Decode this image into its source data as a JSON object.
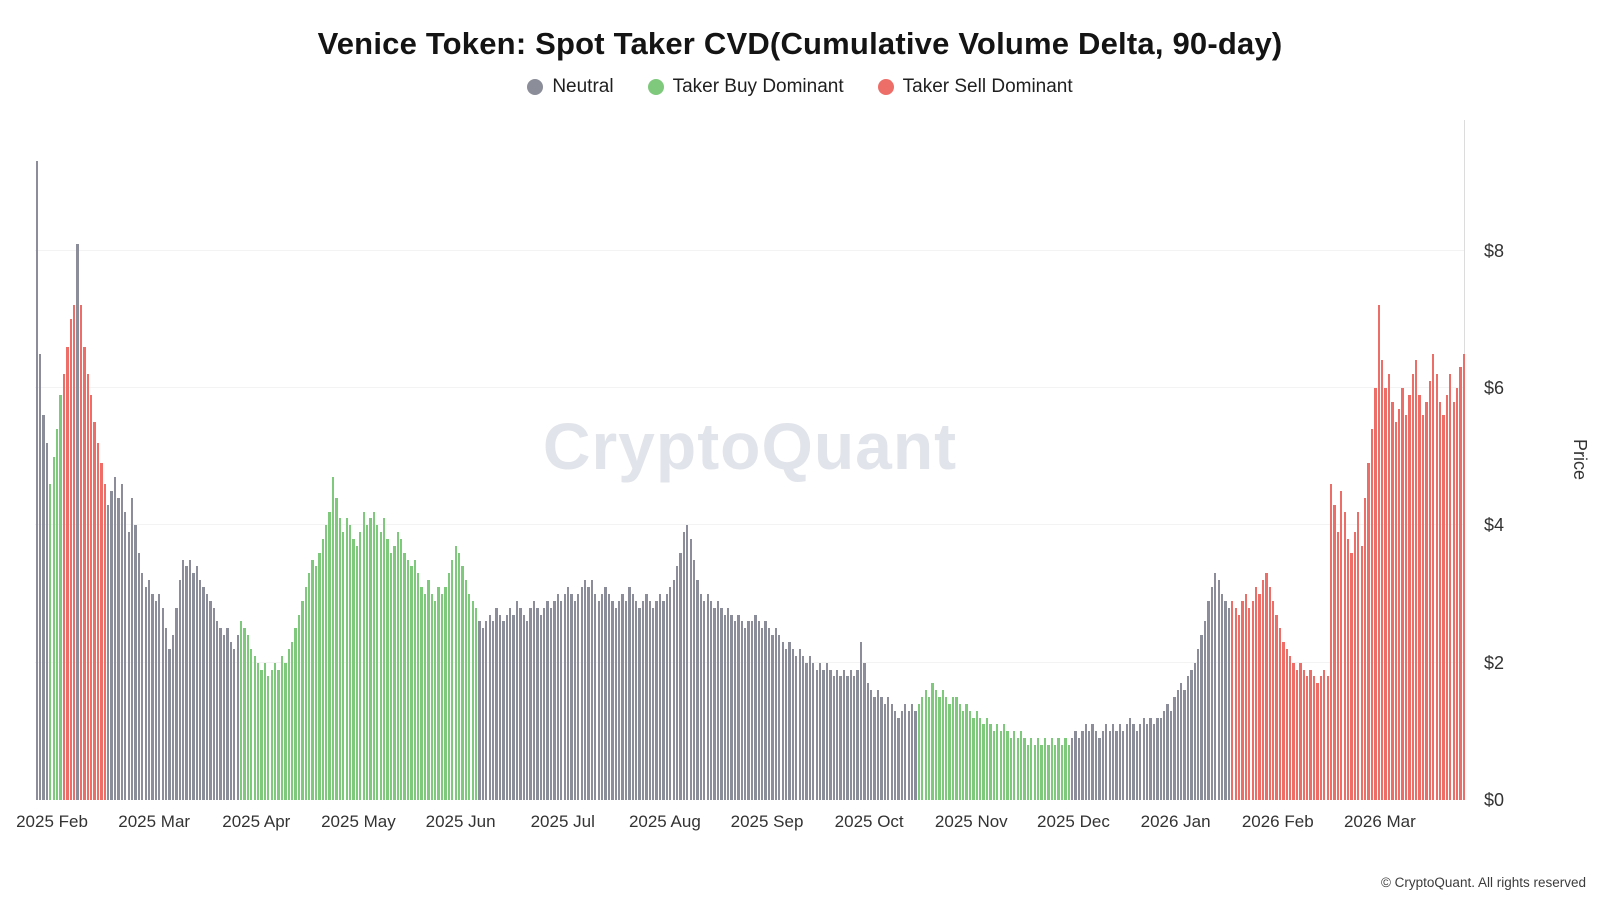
{
  "header": {
    "title": "Venice Token: Spot Taker CVD(Cumulative Volume Delta, 90-day)",
    "legend": [
      {
        "label": "Neutral",
        "color": "#8b8d98"
      },
      {
        "label": "Taker Buy Dominant",
        "color": "#7fc97d"
      },
      {
        "label": "Taker Sell Dominant",
        "color": "#ed6d68"
      }
    ]
  },
  "chart_data": {
    "type": "bar",
    "title": "Venice Token: Spot Taker CVD(Cumulative Volume Delta, 90-day)",
    "xlabel": "",
    "ylabel": "Price",
    "ylim": [
      0,
      9.9
    ],
    "grid": true,
    "legend_position": "top",
    "watermark": "CryptoQuant",
    "colors": {
      "n": "#8b8d98",
      "b": "#7fc97d",
      "s": "#ed6d68"
    },
    "dominance_codes": {
      "n": "Neutral",
      "b": "Taker Buy Dominant",
      "s": "Taker Sell Dominant"
    },
    "bar_format": [
      "price_usd",
      "dominance"
    ],
    "bars_per_x_tick": 30,
    "y_ticks": [
      {
        "label": "$0",
        "value": 0
      },
      {
        "label": "$2",
        "value": 2
      },
      {
        "label": "$4",
        "value": 4
      },
      {
        "label": "$6",
        "value": 6
      },
      {
        "label": "$8",
        "value": 8
      }
    ],
    "x_ticks": [
      "2025 Feb",
      "2025 Mar",
      "2025 Apr",
      "2025 May",
      "2025 Jun",
      "2025 Jul",
      "2025 Aug",
      "2025 Sep",
      "2025 Oct",
      "2025 Nov",
      "2025 Dec",
      "2026 Jan",
      "2026 Feb",
      "2026 Mar"
    ],
    "bars": [
      [
        9.3,
        "n"
      ],
      [
        6.5,
        "n"
      ],
      [
        5.6,
        "n"
      ],
      [
        5.2,
        "n"
      ],
      [
        4.6,
        "b"
      ],
      [
        5.0,
        "b"
      ],
      [
        5.4,
        "b"
      ],
      [
        5.9,
        "b"
      ],
      [
        6.2,
        "s"
      ],
      [
        6.6,
        "s"
      ],
      [
        7.0,
        "s"
      ],
      [
        7.2,
        "s"
      ],
      [
        8.1,
        "n"
      ],
      [
        7.2,
        "s"
      ],
      [
        6.6,
        "s"
      ],
      [
        6.2,
        "s"
      ],
      [
        5.9,
        "s"
      ],
      [
        5.5,
        "s"
      ],
      [
        5.2,
        "s"
      ],
      [
        4.9,
        "s"
      ],
      [
        4.6,
        "s"
      ],
      [
        4.3,
        "n"
      ],
      [
        4.5,
        "n"
      ],
      [
        4.7,
        "n"
      ],
      [
        4.4,
        "n"
      ],
      [
        4.6,
        "n"
      ],
      [
        4.2,
        "n"
      ],
      [
        3.9,
        "n"
      ],
      [
        4.4,
        "n"
      ],
      [
        4.0,
        "n"
      ],
      [
        3.6,
        "n"
      ],
      [
        3.3,
        "n"
      ],
      [
        3.1,
        "n"
      ],
      [
        3.2,
        "n"
      ],
      [
        3.0,
        "n"
      ],
      [
        2.9,
        "n"
      ],
      [
        3.0,
        "n"
      ],
      [
        2.8,
        "n"
      ],
      [
        2.5,
        "n"
      ],
      [
        2.2,
        "n"
      ],
      [
        2.4,
        "n"
      ],
      [
        2.8,
        "n"
      ],
      [
        3.2,
        "n"
      ],
      [
        3.5,
        "n"
      ],
      [
        3.4,
        "n"
      ],
      [
        3.5,
        "n"
      ],
      [
        3.3,
        "n"
      ],
      [
        3.4,
        "n"
      ],
      [
        3.2,
        "n"
      ],
      [
        3.1,
        "n"
      ],
      [
        3.0,
        "n"
      ],
      [
        2.9,
        "n"
      ],
      [
        2.8,
        "n"
      ],
      [
        2.6,
        "n"
      ],
      [
        2.5,
        "n"
      ],
      [
        2.4,
        "n"
      ],
      [
        2.5,
        "n"
      ],
      [
        2.3,
        "n"
      ],
      [
        2.2,
        "n"
      ],
      [
        2.4,
        "n"
      ],
      [
        2.6,
        "b"
      ],
      [
        2.5,
        "b"
      ],
      [
        2.4,
        "b"
      ],
      [
        2.2,
        "b"
      ],
      [
        2.1,
        "b"
      ],
      [
        2.0,
        "b"
      ],
      [
        1.9,
        "b"
      ],
      [
        2.0,
        "b"
      ],
      [
        1.8,
        "b"
      ],
      [
        1.9,
        "b"
      ],
      [
        2.0,
        "b"
      ],
      [
        1.9,
        "b"
      ],
      [
        2.1,
        "b"
      ],
      [
        2.0,
        "b"
      ],
      [
        2.2,
        "b"
      ],
      [
        2.3,
        "b"
      ],
      [
        2.5,
        "b"
      ],
      [
        2.7,
        "b"
      ],
      [
        2.9,
        "b"
      ],
      [
        3.1,
        "b"
      ],
      [
        3.3,
        "b"
      ],
      [
        3.5,
        "b"
      ],
      [
        3.4,
        "b"
      ],
      [
        3.6,
        "b"
      ],
      [
        3.8,
        "b"
      ],
      [
        4.0,
        "b"
      ],
      [
        4.2,
        "b"
      ],
      [
        4.7,
        "b"
      ],
      [
        4.4,
        "b"
      ],
      [
        4.1,
        "b"
      ],
      [
        3.9,
        "b"
      ],
      [
        4.1,
        "b"
      ],
      [
        4.0,
        "b"
      ],
      [
        3.8,
        "b"
      ],
      [
        3.7,
        "b"
      ],
      [
        3.9,
        "b"
      ],
      [
        4.2,
        "b"
      ],
      [
        4.0,
        "b"
      ],
      [
        4.1,
        "b"
      ],
      [
        4.2,
        "b"
      ],
      [
        4.0,
        "b"
      ],
      [
        3.9,
        "b"
      ],
      [
        4.1,
        "b"
      ],
      [
        3.8,
        "b"
      ],
      [
        3.6,
        "b"
      ],
      [
        3.7,
        "b"
      ],
      [
        3.9,
        "b"
      ],
      [
        3.8,
        "b"
      ],
      [
        3.6,
        "b"
      ],
      [
        3.5,
        "b"
      ],
      [
        3.4,
        "b"
      ],
      [
        3.5,
        "b"
      ],
      [
        3.3,
        "b"
      ],
      [
        3.1,
        "b"
      ],
      [
        3.0,
        "b"
      ],
      [
        3.2,
        "b"
      ],
      [
        3.0,
        "b"
      ],
      [
        2.9,
        "b"
      ],
      [
        3.1,
        "b"
      ],
      [
        3.0,
        "b"
      ],
      [
        3.1,
        "b"
      ],
      [
        3.3,
        "b"
      ],
      [
        3.5,
        "b"
      ],
      [
        3.7,
        "b"
      ],
      [
        3.6,
        "b"
      ],
      [
        3.4,
        "b"
      ],
      [
        3.2,
        "b"
      ],
      [
        3.0,
        "b"
      ],
      [
        2.9,
        "b"
      ],
      [
        2.8,
        "b"
      ],
      [
        2.6,
        "n"
      ],
      [
        2.5,
        "n"
      ],
      [
        2.6,
        "n"
      ],
      [
        2.7,
        "n"
      ],
      [
        2.6,
        "n"
      ],
      [
        2.8,
        "n"
      ],
      [
        2.7,
        "n"
      ],
      [
        2.6,
        "n"
      ],
      [
        2.7,
        "n"
      ],
      [
        2.8,
        "n"
      ],
      [
        2.7,
        "n"
      ],
      [
        2.9,
        "n"
      ],
      [
        2.8,
        "n"
      ],
      [
        2.7,
        "n"
      ],
      [
        2.6,
        "n"
      ],
      [
        2.8,
        "n"
      ],
      [
        2.9,
        "n"
      ],
      [
        2.8,
        "n"
      ],
      [
        2.7,
        "n"
      ],
      [
        2.8,
        "n"
      ],
      [
        2.9,
        "n"
      ],
      [
        2.8,
        "n"
      ],
      [
        2.9,
        "n"
      ],
      [
        3.0,
        "n"
      ],
      [
        2.9,
        "n"
      ],
      [
        3.0,
        "n"
      ],
      [
        3.1,
        "n"
      ],
      [
        3.0,
        "n"
      ],
      [
        2.9,
        "n"
      ],
      [
        3.0,
        "n"
      ],
      [
        3.1,
        "n"
      ],
      [
        3.2,
        "n"
      ],
      [
        3.1,
        "n"
      ],
      [
        3.2,
        "n"
      ],
      [
        3.0,
        "n"
      ],
      [
        2.9,
        "n"
      ],
      [
        3.0,
        "n"
      ],
      [
        3.1,
        "n"
      ],
      [
        3.0,
        "n"
      ],
      [
        2.9,
        "n"
      ],
      [
        2.8,
        "n"
      ],
      [
        2.9,
        "n"
      ],
      [
        3.0,
        "n"
      ],
      [
        2.9,
        "n"
      ],
      [
        3.1,
        "n"
      ],
      [
        3.0,
        "n"
      ],
      [
        2.9,
        "n"
      ],
      [
        2.8,
        "n"
      ],
      [
        2.9,
        "n"
      ],
      [
        3.0,
        "n"
      ],
      [
        2.9,
        "n"
      ],
      [
        2.8,
        "n"
      ],
      [
        2.9,
        "n"
      ],
      [
        3.0,
        "n"
      ],
      [
        2.9,
        "n"
      ],
      [
        3.0,
        "n"
      ],
      [
        3.1,
        "n"
      ],
      [
        3.2,
        "n"
      ],
      [
        3.4,
        "n"
      ],
      [
        3.6,
        "n"
      ],
      [
        3.9,
        "n"
      ],
      [
        4.0,
        "n"
      ],
      [
        3.8,
        "n"
      ],
      [
        3.5,
        "n"
      ],
      [
        3.2,
        "n"
      ],
      [
        3.0,
        "n"
      ],
      [
        2.9,
        "n"
      ],
      [
        3.0,
        "n"
      ],
      [
        2.9,
        "n"
      ],
      [
        2.8,
        "n"
      ],
      [
        2.9,
        "n"
      ],
      [
        2.8,
        "n"
      ],
      [
        2.7,
        "n"
      ],
      [
        2.8,
        "n"
      ],
      [
        2.7,
        "n"
      ],
      [
        2.6,
        "n"
      ],
      [
        2.7,
        "n"
      ],
      [
        2.6,
        "n"
      ],
      [
        2.5,
        "n"
      ],
      [
        2.6,
        "n"
      ],
      [
        2.6,
        "n"
      ],
      [
        2.7,
        "n"
      ],
      [
        2.6,
        "n"
      ],
      [
        2.5,
        "n"
      ],
      [
        2.6,
        "n"
      ],
      [
        2.5,
        "n"
      ],
      [
        2.4,
        "n"
      ],
      [
        2.5,
        "n"
      ],
      [
        2.4,
        "n"
      ],
      [
        2.3,
        "n"
      ],
      [
        2.2,
        "n"
      ],
      [
        2.3,
        "n"
      ],
      [
        2.2,
        "n"
      ],
      [
        2.1,
        "n"
      ],
      [
        2.2,
        "n"
      ],
      [
        2.1,
        "n"
      ],
      [
        2.0,
        "n"
      ],
      [
        2.1,
        "n"
      ],
      [
        2.0,
        "n"
      ],
      [
        1.9,
        "n"
      ],
      [
        2.0,
        "n"
      ],
      [
        1.9,
        "n"
      ],
      [
        2.0,
        "n"
      ],
      [
        1.9,
        "n"
      ],
      [
        1.8,
        "n"
      ],
      [
        1.9,
        "n"
      ],
      [
        1.8,
        "n"
      ],
      [
        1.9,
        "n"
      ],
      [
        1.8,
        "n"
      ],
      [
        1.9,
        "n"
      ],
      [
        1.8,
        "n"
      ],
      [
        1.9,
        "n"
      ],
      [
        2.3,
        "n"
      ],
      [
        2.0,
        "n"
      ],
      [
        1.7,
        "n"
      ],
      [
        1.6,
        "n"
      ],
      [
        1.5,
        "n"
      ],
      [
        1.6,
        "n"
      ],
      [
        1.5,
        "n"
      ],
      [
        1.4,
        "n"
      ],
      [
        1.5,
        "n"
      ],
      [
        1.4,
        "n"
      ],
      [
        1.3,
        "n"
      ],
      [
        1.2,
        "n"
      ],
      [
        1.3,
        "n"
      ],
      [
        1.4,
        "n"
      ],
      [
        1.3,
        "n"
      ],
      [
        1.4,
        "n"
      ],
      [
        1.3,
        "n"
      ],
      [
        1.4,
        "b"
      ],
      [
        1.5,
        "b"
      ],
      [
        1.6,
        "b"
      ],
      [
        1.5,
        "b"
      ],
      [
        1.7,
        "b"
      ],
      [
        1.6,
        "b"
      ],
      [
        1.5,
        "b"
      ],
      [
        1.6,
        "b"
      ],
      [
        1.5,
        "b"
      ],
      [
        1.4,
        "b"
      ],
      [
        1.5,
        "b"
      ],
      [
        1.5,
        "b"
      ],
      [
        1.4,
        "b"
      ],
      [
        1.3,
        "b"
      ],
      [
        1.4,
        "b"
      ],
      [
        1.3,
        "b"
      ],
      [
        1.2,
        "b"
      ],
      [
        1.3,
        "b"
      ],
      [
        1.2,
        "b"
      ],
      [
        1.1,
        "b"
      ],
      [
        1.2,
        "b"
      ],
      [
        1.1,
        "b"
      ],
      [
        1.0,
        "b"
      ],
      [
        1.1,
        "b"
      ],
      [
        1.0,
        "b"
      ],
      [
        1.1,
        "b"
      ],
      [
        1.0,
        "b"
      ],
      [
        0.9,
        "b"
      ],
      [
        1.0,
        "b"
      ],
      [
        0.9,
        "b"
      ],
      [
        1.0,
        "b"
      ],
      [
        0.9,
        "b"
      ],
      [
        0.8,
        "b"
      ],
      [
        0.9,
        "b"
      ],
      [
        0.8,
        "b"
      ],
      [
        0.9,
        "b"
      ],
      [
        0.8,
        "b"
      ],
      [
        0.9,
        "b"
      ],
      [
        0.8,
        "b"
      ],
      [
        0.9,
        "b"
      ],
      [
        0.8,
        "b"
      ],
      [
        0.9,
        "b"
      ],
      [
        0.8,
        "b"
      ],
      [
        0.9,
        "b"
      ],
      [
        0.8,
        "b"
      ],
      [
        0.9,
        "n"
      ],
      [
        1.0,
        "n"
      ],
      [
        0.9,
        "n"
      ],
      [
        1.0,
        "n"
      ],
      [
        1.1,
        "n"
      ],
      [
        1.0,
        "n"
      ],
      [
        1.1,
        "n"
      ],
      [
        1.0,
        "n"
      ],
      [
        0.9,
        "n"
      ],
      [
        1.0,
        "n"
      ],
      [
        1.1,
        "n"
      ],
      [
        1.0,
        "n"
      ],
      [
        1.1,
        "n"
      ],
      [
        1.0,
        "n"
      ],
      [
        1.1,
        "n"
      ],
      [
        1.0,
        "n"
      ],
      [
        1.1,
        "n"
      ],
      [
        1.2,
        "n"
      ],
      [
        1.1,
        "n"
      ],
      [
        1.0,
        "n"
      ],
      [
        1.1,
        "n"
      ],
      [
        1.2,
        "n"
      ],
      [
        1.1,
        "n"
      ],
      [
        1.2,
        "n"
      ],
      [
        1.1,
        "n"
      ],
      [
        1.2,
        "n"
      ],
      [
        1.2,
        "n"
      ],
      [
        1.3,
        "n"
      ],
      [
        1.4,
        "n"
      ],
      [
        1.3,
        "n"
      ],
      [
        1.5,
        "n"
      ],
      [
        1.6,
        "n"
      ],
      [
        1.7,
        "n"
      ],
      [
        1.6,
        "n"
      ],
      [
        1.8,
        "n"
      ],
      [
        1.9,
        "n"
      ],
      [
        2.0,
        "n"
      ],
      [
        2.2,
        "n"
      ],
      [
        2.4,
        "n"
      ],
      [
        2.6,
        "n"
      ],
      [
        2.9,
        "n"
      ],
      [
        3.1,
        "n"
      ],
      [
        3.3,
        "n"
      ],
      [
        3.2,
        "n"
      ],
      [
        3.0,
        "n"
      ],
      [
        2.9,
        "n"
      ],
      [
        2.8,
        "n"
      ],
      [
        2.9,
        "s"
      ],
      [
        2.8,
        "s"
      ],
      [
        2.7,
        "s"
      ],
      [
        2.9,
        "s"
      ],
      [
        3.0,
        "s"
      ],
      [
        2.8,
        "s"
      ],
      [
        2.9,
        "s"
      ],
      [
        3.1,
        "s"
      ],
      [
        3.0,
        "s"
      ],
      [
        3.2,
        "s"
      ],
      [
        3.3,
        "s"
      ],
      [
        3.1,
        "s"
      ],
      [
        2.9,
        "s"
      ],
      [
        2.7,
        "s"
      ],
      [
        2.5,
        "s"
      ],
      [
        2.3,
        "s"
      ],
      [
        2.2,
        "s"
      ],
      [
        2.1,
        "s"
      ],
      [
        2.0,
        "s"
      ],
      [
        1.9,
        "s"
      ],
      [
        2.0,
        "s"
      ],
      [
        1.9,
        "s"
      ],
      [
        1.8,
        "s"
      ],
      [
        1.9,
        "s"
      ],
      [
        1.8,
        "s"
      ],
      [
        1.7,
        "s"
      ],
      [
        1.8,
        "s"
      ],
      [
        1.9,
        "s"
      ],
      [
        1.8,
        "s"
      ],
      [
        4.6,
        "s"
      ],
      [
        4.3,
        "s"
      ],
      [
        3.9,
        "s"
      ],
      [
        4.5,
        "s"
      ],
      [
        4.2,
        "s"
      ],
      [
        3.8,
        "s"
      ],
      [
        3.6,
        "s"
      ],
      [
        3.9,
        "s"
      ],
      [
        4.2,
        "s"
      ],
      [
        3.7,
        "s"
      ],
      [
        4.4,
        "s"
      ],
      [
        4.9,
        "s"
      ],
      [
        5.4,
        "s"
      ],
      [
        6.0,
        "s"
      ],
      [
        7.2,
        "s"
      ],
      [
        6.4,
        "s"
      ],
      [
        6.0,
        "s"
      ],
      [
        6.2,
        "s"
      ],
      [
        5.8,
        "s"
      ],
      [
        5.5,
        "s"
      ],
      [
        5.7,
        "s"
      ],
      [
        6.0,
        "s"
      ],
      [
        5.6,
        "s"
      ],
      [
        5.9,
        "s"
      ],
      [
        6.2,
        "s"
      ],
      [
        6.4,
        "s"
      ],
      [
        5.9,
        "s"
      ],
      [
        5.6,
        "s"
      ],
      [
        5.8,
        "s"
      ],
      [
        6.1,
        "s"
      ],
      [
        6.5,
        "s"
      ],
      [
        6.2,
        "s"
      ],
      [
        5.8,
        "s"
      ],
      [
        5.6,
        "s"
      ],
      [
        5.9,
        "s"
      ],
      [
        6.2,
        "s"
      ],
      [
        5.8,
        "s"
      ],
      [
        6.0,
        "s"
      ],
      [
        6.3,
        "s"
      ],
      [
        6.5,
        "s"
      ]
    ]
  },
  "footer": {
    "copyright": "© CryptoQuant. All rights reserved"
  }
}
